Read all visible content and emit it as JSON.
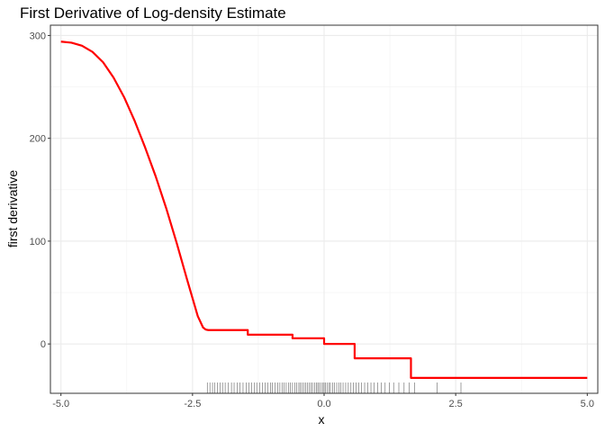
{
  "chart_data": {
    "type": "line",
    "title": "First Derivative of Log-density Estimate",
    "xlabel": "x",
    "ylabel": "first derivative",
    "xlim": [
      -5.2,
      5.2
    ],
    "ylim": [
      -48,
      310
    ],
    "x_ticks": [
      -5.0,
      -2.5,
      0.0,
      2.5,
      5.0
    ],
    "x_tick_labels": [
      "-5.0",
      "-2.5",
      "0.0",
      "2.5",
      "5.0"
    ],
    "y_ticks": [
      0,
      100,
      200,
      300
    ],
    "y_tick_labels": [
      "0",
      "100",
      "200",
      "300"
    ],
    "grid": true,
    "line_color": "#ff0000",
    "rug_color": "#000000",
    "series": [
      {
        "x": [
          -5.0,
          -4.8,
          -4.6,
          -4.4,
          -4.2,
          -4.0,
          -3.8,
          -3.6,
          -3.4,
          -3.2,
          -3.0,
          -2.8,
          -2.6,
          -2.4,
          -2.3,
          -2.25,
          -2.2,
          -2.15,
          -1.45,
          -1.45,
          -0.6,
          -0.6,
          0.0,
          0.0,
          0.58,
          0.58,
          1.65,
          1.65,
          5.0
        ],
        "y": [
          294,
          293,
          290,
          284,
          274,
          259,
          240,
          217,
          191,
          163,
          132,
          98,
          62,
          27,
          16,
          14,
          13.5,
          13.5,
          13.5,
          9,
          9,
          5.5,
          5.5,
          0,
          0,
          -14,
          -14,
          -33,
          -33
        ]
      }
    ],
    "rug": [
      -2.22,
      -2.17,
      -2.12,
      -2.08,
      -2.03,
      -1.98,
      -1.93,
      -1.88,
      -1.82,
      -1.76,
      -1.71,
      -1.65,
      -1.6,
      -1.54,
      -1.48,
      -1.43,
      -1.38,
      -1.33,
      -1.28,
      -1.22,
      -1.17,
      -1.12,
      -1.07,
      -1.02,
      -0.98,
      -0.93,
      -0.88,
      -0.84,
      -0.8,
      -0.76,
      -0.72,
      -0.68,
      -0.64,
      -0.6,
      -0.56,
      -0.52,
      -0.48,
      -0.45,
      -0.42,
      -0.38,
      -0.35,
      -0.32,
      -0.28,
      -0.25,
      -0.22,
      -0.18,
      -0.15,
      -0.12,
      -0.09,
      -0.06,
      -0.03,
      0.0,
      0.03,
      0.06,
      0.09,
      0.12,
      0.16,
      0.2,
      0.24,
      0.28,
      0.32,
      0.36,
      0.41,
      0.46,
      0.51,
      0.56,
      0.61,
      0.66,
      0.71,
      0.77,
      0.83,
      0.89,
      0.95,
      1.02,
      1.09,
      1.16,
      1.24,
      1.32,
      1.42,
      1.52,
      1.62,
      1.72,
      2.15,
      2.6
    ]
  }
}
